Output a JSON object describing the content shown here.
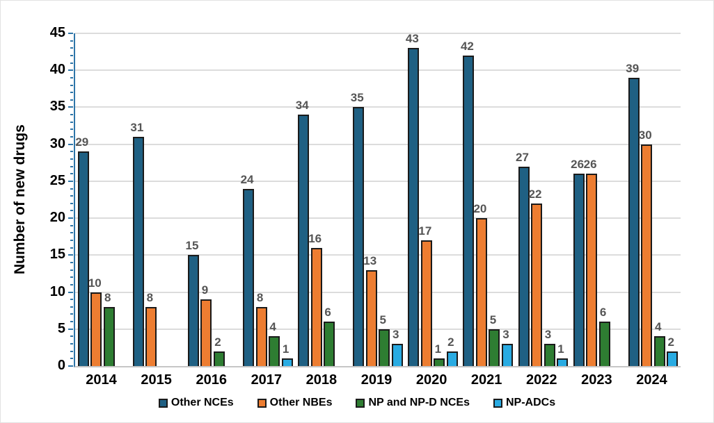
{
  "figure": {
    "background": "#FFFFFF",
    "border_color": "#E2E2E2"
  },
  "chart_data": {
    "type": "bar",
    "title": "",
    "xlabel": "",
    "ylabel": "Number of new drugs",
    "categories": [
      "2014",
      "2015",
      "2016",
      "2017",
      "2018",
      "2019",
      "2020",
      "2021",
      "2022",
      "2023",
      "2024"
    ],
    "series": [
      {
        "name": "Other NCEs",
        "color": "#1F6083",
        "values": [
          29,
          31,
          15,
          24,
          34,
          35,
          43,
          42,
          27,
          26,
          39
        ]
      },
      {
        "name": "Other NBEs",
        "color": "#ED7D31",
        "values": [
          10,
          8,
          9,
          8,
          16,
          13,
          17,
          20,
          22,
          26,
          30
        ]
      },
      {
        "name": "NP and NP-D NCEs",
        "color": "#2E7D32",
        "values": [
          8,
          0,
          2,
          4,
          6,
          5,
          1,
          5,
          3,
          6,
          4
        ]
      },
      {
        "name": "NP-ADCs",
        "color": "#29ABE2",
        "values": [
          0,
          0,
          0,
          1,
          0,
          3,
          2,
          3,
          1,
          0,
          2
        ]
      }
    ],
    "ylim": [
      0,
      45
    ],
    "ytick_step": 5,
    "minor_tick_step": 1,
    "grid": true,
    "value_labels": true,
    "hide_zero_bars": true,
    "legend_position": "bottom",
    "colors": {
      "y_axis": "#2E75A8",
      "x_axis": "#C6C6C6",
      "gridline": "#DCDCDC",
      "bar_border": "#1A1A1A",
      "value_label": "#555555",
      "tick_label": "#000000"
    }
  }
}
